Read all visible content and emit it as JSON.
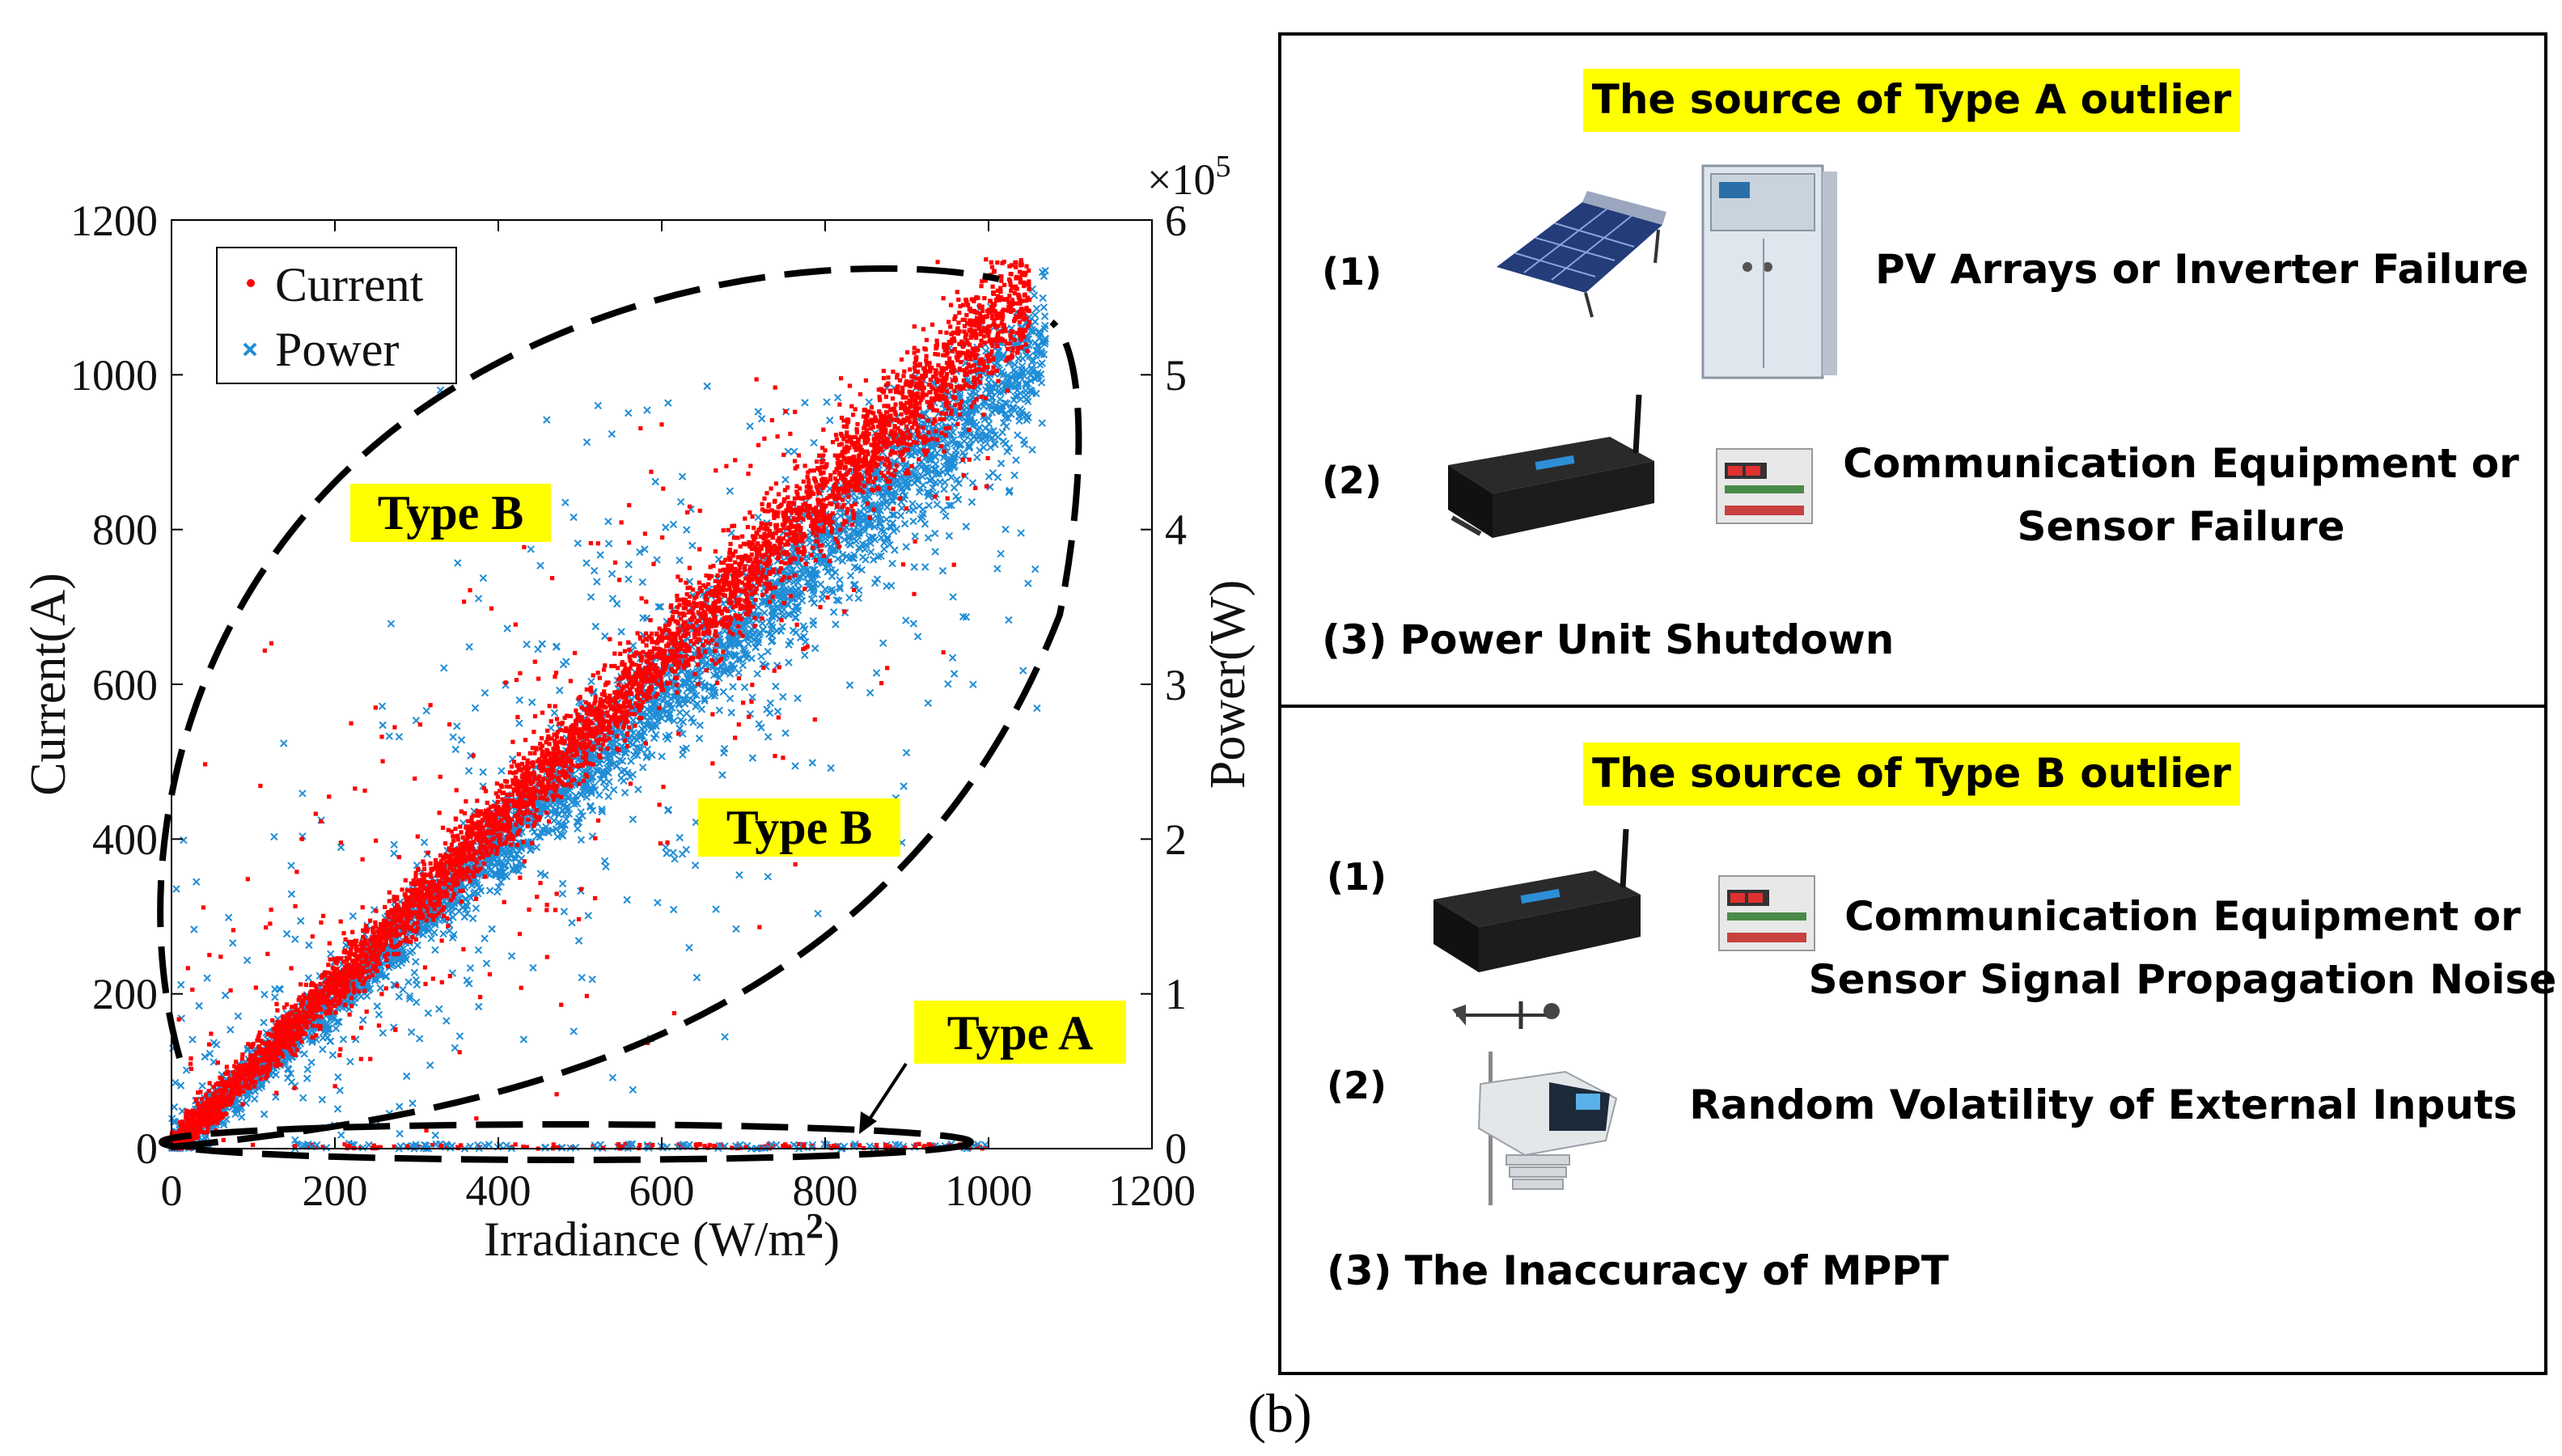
{
  "chart_data": {
    "type": "scatter",
    "xlabel_main": "Irradiance (W/m",
    "xlabel_sup": "2",
    "xlabel_close": ")",
    "ylabel_left": "Current(A)",
    "ylabel_right": "Power(W)",
    "right_axis_multiplier_base": "×10",
    "right_axis_multiplier_exp": "5",
    "xlim": [
      0,
      1200
    ],
    "ylim_left": [
      0,
      1200
    ],
    "ylim_right": [
      0,
      6
    ],
    "x_ticks": [
      "0",
      "200",
      "400",
      "600",
      "800",
      "1000",
      "1200"
    ],
    "y_left_ticks": [
      "0",
      "200",
      "400",
      "600",
      "800",
      "1000",
      "1200"
    ],
    "y_right_ticks": [
      "0",
      "1",
      "2",
      "3",
      "4",
      "5",
      "6"
    ],
    "x_tick_values": [
      0,
      200,
      400,
      600,
      800,
      1000,
      1200
    ],
    "y_left_tick_values": [
      0,
      200,
      400,
      600,
      800,
      1000,
      1200
    ],
    "series": [
      {
        "name": "Current",
        "color": "#ff0000",
        "marker": "dot",
        "trend_slope": 1.06,
        "x_range": [
          0,
          1050
        ]
      },
      {
        "name": "Power",
        "color": "#1f8dd6",
        "marker": "x",
        "trend_slope": 0.97,
        "x_range": [
          0,
          1070
        ]
      }
    ],
    "legend": {
      "position": "top-left",
      "entries": [
        "Current",
        "Power"
      ]
    },
    "annotations": [
      {
        "text": "Type B",
        "x": 350,
        "y": 815
      },
      {
        "text": "Type B",
        "x": 775,
        "y": 408
      },
      {
        "text": "Type A",
        "x": 1030,
        "y": 145
      }
    ]
  },
  "panel": {
    "section_a": {
      "title": "The source of Type A outlier",
      "items": [
        {
          "num": "(1)",
          "text": "PV Arrays or Inverter Failure"
        },
        {
          "num": "(2)",
          "text_line1": "Communication Equipment or",
          "text_line2": "Sensor Failure"
        },
        {
          "num": "(3)",
          "text": "Power Unit Shutdown"
        }
      ]
    },
    "section_b": {
      "title": "The source of Type B outlier",
      "items": [
        {
          "num": "(1)",
          "text_line1": "Communication Equipment or",
          "text_line2": "Sensor Signal Propagation Noise"
        },
        {
          "num": "(2)",
          "text": "Random Volatility of External Inputs"
        },
        {
          "num": "(3)",
          "text": "The Inaccuracy of MPPT"
        }
      ]
    },
    "highlight_color": "#ffff00"
  },
  "caption": "(b)"
}
